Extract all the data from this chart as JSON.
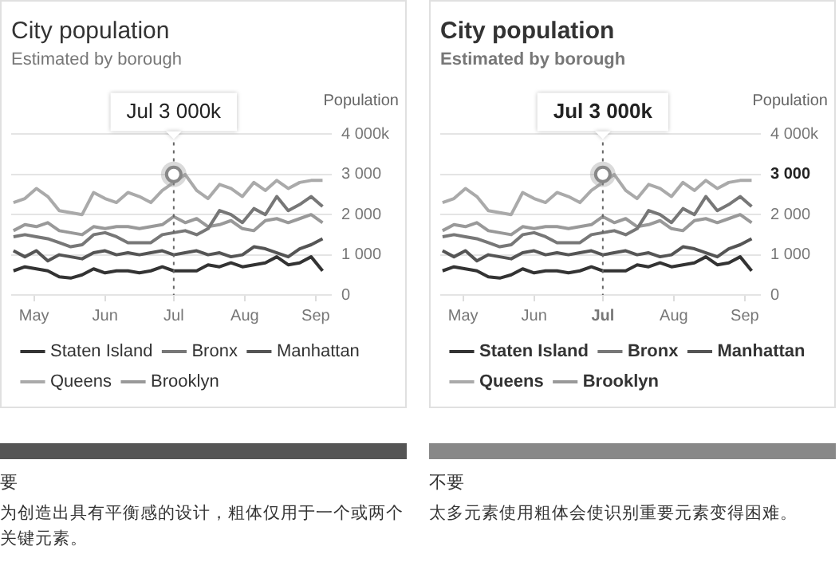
{
  "chart_data": [
    {
      "type": "line",
      "title": "City population",
      "subtitle": "Estimated by borough",
      "ylabel": "Population",
      "x": [
        "--04-22",
        "--04-27",
        "--05-02",
        "--05-07",
        "--05-12",
        "--05-17",
        "--05-22",
        "--05-27",
        "--06-01",
        "--06-06",
        "--06-11",
        "--06-16",
        "--06-21",
        "--06-26",
        "--07-01",
        "--07-06",
        "--07-11",
        "--07-16",
        "--07-21",
        "--07-26",
        "--07-31",
        "--08-05",
        "--08-10",
        "--08-15",
        "--08-20",
        "--08-25",
        "--08-30",
        "--09-04"
      ],
      "series": [
        {
          "name": "Staten Island",
          "color": "#333333",
          "values": [
            600,
            700,
            650,
            600,
            450,
            420,
            500,
            650,
            550,
            600,
            600,
            550,
            600,
            700,
            600,
            600,
            600,
            750,
            700,
            800,
            700,
            750,
            800,
            950,
            750,
            800,
            950,
            600
          ]
        },
        {
          "name": "Bronx",
          "color": "#777777",
          "values": [
            1450,
            1500,
            1450,
            1400,
            1300,
            1200,
            1250,
            1500,
            1550,
            1450,
            1300,
            1300,
            1300,
            1500,
            1550,
            1600,
            1500,
            1650,
            2100,
            2000,
            1800,
            2150,
            2000,
            2450,
            2100,
            2250,
            2450,
            2200
          ]
        },
        {
          "name": "Manhattan",
          "color": "#555555",
          "values": [
            1100,
            950,
            1100,
            850,
            1000,
            950,
            900,
            1050,
            1100,
            1000,
            1050,
            1000,
            1050,
            1100,
            1000,
            1050,
            1100,
            1000,
            1050,
            950,
            1000,
            1200,
            1150,
            1050,
            950,
            1150,
            1250,
            1400
          ]
        },
        {
          "name": "Queens",
          "color": "#aaaaaa",
          "values": [
            2300,
            2400,
            2650,
            2450,
            2100,
            2050,
            2000,
            2550,
            2400,
            2300,
            2550,
            2450,
            2300,
            2600,
            2800,
            3000,
            2600,
            2400,
            2750,
            2650,
            2450,
            2800,
            2600,
            2850,
            2650,
            2800,
            2850,
            2850
          ]
        },
        {
          "name": "Brooklyn",
          "color": "#999999",
          "values": [
            1600,
            1750,
            1700,
            1800,
            1600,
            1550,
            1500,
            1700,
            1650,
            1700,
            1700,
            1650,
            1700,
            1750,
            1950,
            1800,
            1900,
            1700,
            1750,
            1850,
            1650,
            1600,
            1850,
            1900,
            1800,
            1900,
            2000,
            1800
          ]
        }
      ],
      "xlim": [
        "--04-21",
        "--09-08"
      ],
      "xticks": [
        {
          "value": "--05-01",
          "label": "May"
        },
        {
          "value": "--06-01",
          "label": "Jun"
        },
        {
          "value": "--07-01",
          "label": "Jul"
        },
        {
          "value": "--08-01",
          "label": "Aug"
        },
        {
          "value": "--09-01",
          "label": "Sep"
        }
      ],
      "ylim": [
        0,
        4000
      ],
      "yticks": [
        0,
        {
          "value": 1000,
          "label": "1 000"
        },
        {
          "value": 2000,
          "label": "2 000"
        },
        {
          "value": 3000,
          "label": "3 000"
        },
        {
          "value": 4000,
          "label": "4 000k"
        }
      ],
      "grid": "y",
      "legend": "bottom",
      "ref_lines": [
        {
          "axis": "x",
          "value": "--07-01",
          "line_style": "dotted"
        }
      ],
      "annotations": [
        {
          "text": "Jul 3 000k",
          "x": "--07-01",
          "y": 3000
        },
        "要",
        "为创造出具有平衡感的设计，粗体仅用于一个或两个关键元素。"
      ]
    },
    {
      "type": "line",
      "title": "City population",
      "subtitle": "Estimated by borough",
      "ylabel": "Population",
      "x": [
        "--04-22",
        "--04-27",
        "--05-02",
        "--05-07",
        "--05-12",
        "--05-17",
        "--05-22",
        "--05-27",
        "--06-01",
        "--06-06",
        "--06-11",
        "--06-16",
        "--06-21",
        "--06-26",
        "--07-01",
        "--07-06",
        "--07-11",
        "--07-16",
        "--07-21",
        "--07-26",
        "--07-31",
        "--08-05",
        "--08-10",
        "--08-15",
        "--08-20",
        "--08-25",
        "--08-30",
        "--09-04"
      ],
      "series": [
        {
          "name": "Staten Island",
          "color": "#333333",
          "values": [
            600,
            700,
            650,
            600,
            450,
            420,
            500,
            650,
            550,
            600,
            600,
            550,
            600,
            700,
            600,
            600,
            600,
            750,
            700,
            800,
            700,
            750,
            800,
            950,
            750,
            800,
            950,
            600
          ]
        },
        {
          "name": "Bronx",
          "color": "#777777",
          "values": [
            1450,
            1500,
            1450,
            1400,
            1300,
            1200,
            1250,
            1500,
            1550,
            1450,
            1300,
            1300,
            1300,
            1500,
            1550,
            1600,
            1500,
            1650,
            2100,
            2000,
            1800,
            2150,
            2000,
            2450,
            2100,
            2250,
            2450,
            2200
          ]
        },
        {
          "name": "Manhattan",
          "color": "#555555",
          "values": [
            1100,
            950,
            1100,
            850,
            1000,
            950,
            900,
            1050,
            1100,
            1000,
            1050,
            1000,
            1050,
            1100,
            1000,
            1050,
            1100,
            1000,
            1050,
            950,
            1000,
            1200,
            1150,
            1050,
            950,
            1150,
            1250,
            1400
          ]
        },
        {
          "name": "Queens",
          "color": "#aaaaaa",
          "values": [
            2300,
            2400,
            2650,
            2450,
            2100,
            2050,
            2000,
            2550,
            2400,
            2300,
            2550,
            2450,
            2300,
            2600,
            2800,
            3000,
            2600,
            2400,
            2750,
            2650,
            2450,
            2800,
            2600,
            2850,
            2650,
            2800,
            2850,
            2850
          ]
        },
        {
          "name": "Brooklyn",
          "color": "#999999",
          "values": [
            1600,
            1750,
            1700,
            1800,
            1600,
            1550,
            1500,
            1700,
            1650,
            1700,
            1700,
            1650,
            1700,
            1750,
            1950,
            1800,
            1900,
            1700,
            1750,
            1850,
            1650,
            1600,
            1850,
            1900,
            1800,
            1900,
            2000,
            1800
          ]
        }
      ],
      "xlim": [
        "--04-21",
        "--09-08"
      ],
      "xticks": [
        {
          "value": "--05-01",
          "label": "May"
        },
        {
          "value": "--06-01",
          "label": "Jun"
        },
        {
          "value": "--07-01",
          "label": "Jul"
        },
        {
          "value": "--08-01",
          "label": "Aug"
        },
        {
          "value": "--09-01",
          "label": "Sep"
        }
      ],
      "ylim": [
        0,
        4000
      ],
      "yticks": [
        0,
        {
          "value": 1000,
          "label": "1 000"
        },
        {
          "value": 2000,
          "label": "2 000"
        },
        {
          "value": 3000,
          "label": "3 000"
        },
        {
          "value": 4000,
          "label": "4 000k"
        }
      ],
      "grid": "y",
      "legend": "bottom",
      "ref_lines": [
        {
          "axis": "x",
          "value": "--07-01",
          "line_style": "dotted"
        }
      ],
      "annotations": [
        {
          "text": "Jul 3 000k",
          "x": "--07-01",
          "y": 3000
        },
        "不要",
        "太多元素使用粗体会使识别重要元素变得困难。"
      ]
    }
  ]
}
